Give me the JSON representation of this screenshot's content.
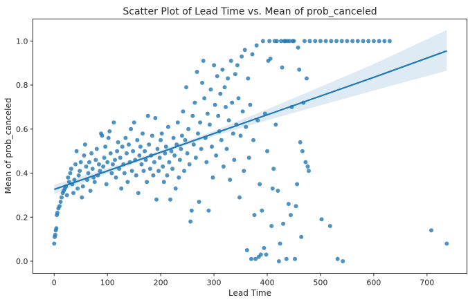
{
  "chart_data": {
    "type": "scatter",
    "title": "Scatter Plot of Lead Time vs. Mean of prob_canceled",
    "xlabel": "Lead Time",
    "ylabel": "Mean of prob_canceled",
    "xlim": [
      -40,
      775
    ],
    "ylim": [
      -0.055,
      1.1
    ],
    "xticks": [
      0,
      100,
      200,
      300,
      400,
      500,
      600,
      700
    ],
    "yticks": [
      0.0,
      0.2,
      0.4,
      0.6,
      0.8,
      1.0
    ],
    "ytick_labels": [
      "0.0",
      "0.2",
      "0.4",
      "0.6",
      "0.8",
      "1.0"
    ],
    "grid": false,
    "colors": {
      "points": "#1f77b4",
      "line": "#1f77b4",
      "band": "#1f77b4"
    },
    "regression": {
      "x": [
        0,
        100,
        200,
        300,
        400,
        500,
        600,
        737
      ],
      "y": [
        0.326,
        0.41,
        0.495,
        0.58,
        0.665,
        0.75,
        0.835,
        0.955
      ],
      "ci_lower": [
        0.305,
        0.398,
        0.487,
        0.568,
        0.64,
        0.708,
        0.775,
        0.865
      ],
      "ci_upper": [
        0.347,
        0.422,
        0.503,
        0.592,
        0.69,
        0.792,
        0.895,
        1.05
      ]
    },
    "points": [
      [
        0,
        0.08
      ],
      [
        1,
        0.11
      ],
      [
        2,
        0.12
      ],
      [
        3,
        0.14
      ],
      [
        4,
        0.15
      ],
      [
        5,
        0.21
      ],
      [
        6,
        0.22
      ],
      [
        8,
        0.24
      ],
      [
        10,
        0.25
      ],
      [
        12,
        0.27
      ],
      [
        14,
        0.29
      ],
      [
        16,
        0.31
      ],
      [
        18,
        0.32
      ],
      [
        20,
        0.33
      ],
      [
        22,
        0.34
      ],
      [
        24,
        0.3
      ],
      [
        26,
        0.38
      ],
      [
        28,
        0.36
      ],
      [
        30,
        0.4
      ],
      [
        32,
        0.42
      ],
      [
        34,
        0.35
      ],
      [
        36,
        0.31
      ],
      [
        38,
        0.37
      ],
      [
        40,
        0.44
      ],
      [
        42,
        0.5
      ],
      [
        44,
        0.33
      ],
      [
        46,
        0.39
      ],
      [
        48,
        0.41
      ],
      [
        50,
        0.45
      ],
      [
        52,
        0.29
      ],
      [
        54,
        0.34
      ],
      [
        56,
        0.48
      ],
      [
        58,
        0.53
      ],
      [
        60,
        0.43
      ],
      [
        62,
        0.37
      ],
      [
        64,
        0.4
      ],
      [
        66,
        0.45
      ],
      [
        68,
        0.32
      ],
      [
        70,
        0.49
      ],
      [
        72,
        0.42
      ],
      [
        74,
        0.38
      ],
      [
        76,
        0.36
      ],
      [
        78,
        0.46
      ],
      [
        80,
        0.51
      ],
      [
        82,
        0.39
      ],
      [
        84,
        0.44
      ],
      [
        86,
        0.41
      ],
      [
        88,
        0.58
      ],
      [
        90,
        0.57
      ],
      [
        92,
        0.43
      ],
      [
        94,
        0.47
      ],
      [
        96,
        0.52
      ],
      [
        98,
        0.35
      ],
      [
        100,
        0.45
      ],
      [
        102,
        0.56
      ],
      [
        104,
        0.59
      ],
      [
        106,
        0.49
      ],
      [
        108,
        0.4
      ],
      [
        110,
        0.44
      ],
      [
        112,
        0.63
      ],
      [
        114,
        0.46
      ],
      [
        116,
        0.38
      ],
      [
        118,
        0.5
      ],
      [
        120,
        0.54
      ],
      [
        122,
        0.42
      ],
      [
        124,
        0.47
      ],
      [
        126,
        0.33
      ],
      [
        128,
        0.52
      ],
      [
        130,
        0.44
      ],
      [
        132,
        0.4
      ],
      [
        134,
        0.56
      ],
      [
        136,
        0.49
      ],
      [
        138,
        0.36
      ],
      [
        140,
        0.53
      ],
      [
        142,
        0.45
      ],
      [
        144,
        0.6
      ],
      [
        146,
        0.41
      ],
      [
        148,
        0.5
      ],
      [
        150,
        0.63
      ],
      [
        152,
        0.46
      ],
      [
        154,
        0.39
      ],
      [
        156,
        0.55
      ],
      [
        158,
        0.31
      ],
      [
        160,
        0.48
      ],
      [
        162,
        0.52
      ],
      [
        164,
        0.44
      ],
      [
        166,
        0.58
      ],
      [
        168,
        0.41
      ],
      [
        170,
        0.5
      ],
      [
        172,
        0.46
      ],
      [
        174,
        0.36
      ],
      [
        176,
        0.66
      ],
      [
        178,
        0.53
      ],
      [
        180,
        0.42
      ],
      [
        182,
        0.48
      ],
      [
        184,
        0.57
      ],
      [
        186,
        0.39
      ],
      [
        188,
        0.45
      ],
      [
        190,
        0.65
      ],
      [
        192,
        0.28
      ],
      [
        194,
        0.51
      ],
      [
        196,
        0.41
      ],
      [
        198,
        0.47
      ],
      [
        200,
        0.55
      ],
      [
        202,
        0.58
      ],
      [
        204,
        0.43
      ],
      [
        206,
        0.36
      ],
      [
        208,
        0.49
      ],
      [
        210,
        0.52
      ],
      [
        212,
        0.39
      ],
      [
        214,
        0.61
      ],
      [
        216,
        0.45
      ],
      [
        218,
        0.28
      ],
      [
        220,
        0.5
      ],
      [
        222,
        0.42
      ],
      [
        224,
        0.56
      ],
      [
        226,
        0.48
      ],
      [
        228,
        0.33
      ],
      [
        230,
        0.53
      ],
      [
        232,
        0.63
      ],
      [
        234,
        0.38
      ],
      [
        236,
        0.46
      ],
      [
        238,
        0.51
      ],
      [
        240,
        0.57
      ],
      [
        242,
        0.68
      ],
      [
        244,
        0.41
      ],
      [
        246,
        0.55
      ],
      [
        248,
        0.79
      ],
      [
        250,
        0.49
      ],
      [
        252,
        0.6
      ],
      [
        254,
        0.44
      ],
      [
        256,
        0.18
      ],
      [
        258,
        0.23
      ],
      [
        260,
        0.66
      ],
      [
        262,
        0.53
      ],
      [
        264,
        0.72
      ],
      [
        266,
        0.47
      ],
      [
        268,
        0.86
      ],
      [
        270,
        0.58
      ],
      [
        272,
        0.27
      ],
      [
        274,
        0.63
      ],
      [
        276,
        0.51
      ],
      [
        278,
        0.81
      ],
      [
        280,
        0.91
      ],
      [
        282,
        0.74
      ],
      [
        284,
        0.56
      ],
      [
        286,
        0.45
      ],
      [
        288,
        0.67
      ],
      [
        290,
        0.23
      ],
      [
        292,
        0.62
      ],
      [
        294,
        0.78
      ],
      [
        296,
        0.52
      ],
      [
        298,
        0.38
      ],
      [
        300,
        0.89
      ],
      [
        302,
        0.71
      ],
      [
        304,
        0.48
      ],
      [
        306,
        0.84
      ],
      [
        308,
        0.66
      ],
      [
        310,
        0.59
      ],
      [
        312,
        0.76
      ],
      [
        314,
        0.55
      ],
      [
        316,
        0.87
      ],
      [
        318,
        0.43
      ],
      [
        320,
        0.79
      ],
      [
        322,
        0.7
      ],
      [
        324,
        0.51
      ],
      [
        326,
        0.83
      ],
      [
        328,
        0.64
      ],
      [
        330,
        0.37
      ],
      [
        332,
        0.91
      ],
      [
        334,
        0.72
      ],
      [
        336,
        0.58
      ],
      [
        338,
        0.46
      ],
      [
        340,
        0.85
      ],
      [
        342,
        0.62
      ],
      [
        344,
        0.89
      ],
      [
        346,
        0.74
      ],
      [
        348,
        0.29
      ],
      [
        350,
        0.57
      ],
      [
        352,
        0.93
      ],
      [
        354,
        0.68
      ],
      [
        356,
        0.41
      ],
      [
        358,
        0.96
      ],
      [
        360,
        0.61
      ],
      [
        362,
        0.05
      ],
      [
        364,
        0.83
      ],
      [
        366,
        0.47
      ],
      [
        368,
        0.71
      ],
      [
        370,
        0.01
      ],
      [
        372,
        0.94
      ],
      [
        374,
        0.55
      ],
      [
        376,
        0.21
      ],
      [
        378,
        0.01
      ],
      [
        380,
        0.98
      ],
      [
        382,
        0.64
      ],
      [
        384,
        0.02
      ],
      [
        386,
        0.35
      ],
      [
        388,
        0.03
      ],
      [
        390,
        0.23
      ],
      [
        392,
        1.0
      ],
      [
        394,
        0.06
      ],
      [
        396,
        0.67
      ],
      [
        398,
        0.03
      ],
      [
        400,
        0.5
      ],
      [
        402,
        0.91
      ],
      [
        404,
        1.0
      ],
      [
        406,
        0.92
      ],
      [
        408,
        0.16
      ],
      [
        410,
        0.33
      ],
      [
        412,
        0.42
      ],
      [
        414,
        1.0
      ],
      [
        416,
        0.62
      ],
      [
        418,
        1.0
      ],
      [
        420,
        0.32
      ],
      [
        422,
        0.0
      ],
      [
        424,
        0.08
      ],
      [
        426,
        1.0
      ],
      [
        428,
        0.88
      ],
      [
        430,
        0.17
      ],
      [
        432,
        1.0
      ],
      [
        434,
        1.0
      ],
      [
        436,
        0.01
      ],
      [
        438,
        1.0
      ],
      [
        440,
        0.26
      ],
      [
        442,
        1.0
      ],
      [
        444,
        0.21
      ],
      [
        446,
        0.7
      ],
      [
        448,
        1.0
      ],
      [
        450,
        1.0
      ],
      [
        452,
        0.01
      ],
      [
        454,
        0.25
      ],
      [
        456,
        0.35
      ],
      [
        458,
        0.97
      ],
      [
        460,
        0.87
      ],
      [
        462,
        0.54
      ],
      [
        464,
        0.11
      ],
      [
        466,
        0.5
      ],
      [
        468,
        0.72
      ],
      [
        470,
        1.0
      ],
      [
        472,
        0.45
      ],
      [
        474,
        0.83
      ],
      [
        476,
        0.43
      ],
      [
        478,
        0.41
      ],
      [
        480,
        1.0
      ],
      [
        490,
        1.0
      ],
      [
        500,
        1.0
      ],
      [
        502,
        0.19
      ],
      [
        510,
        1.0
      ],
      [
        518,
        0.16
      ],
      [
        520,
        1.0
      ],
      [
        530,
        1.0
      ],
      [
        532,
        0.01
      ],
      [
        540,
        1.0
      ],
      [
        542,
        0.0
      ],
      [
        550,
        1.0
      ],
      [
        560,
        1.0
      ],
      [
        570,
        1.0
      ],
      [
        580,
        1.0
      ],
      [
        590,
        1.0
      ],
      [
        600,
        1.0
      ],
      [
        610,
        1.0
      ],
      [
        620,
        1.0
      ],
      [
        630,
        1.0
      ],
      [
        708,
        0.14
      ],
      [
        737,
        0.08
      ]
    ]
  }
}
